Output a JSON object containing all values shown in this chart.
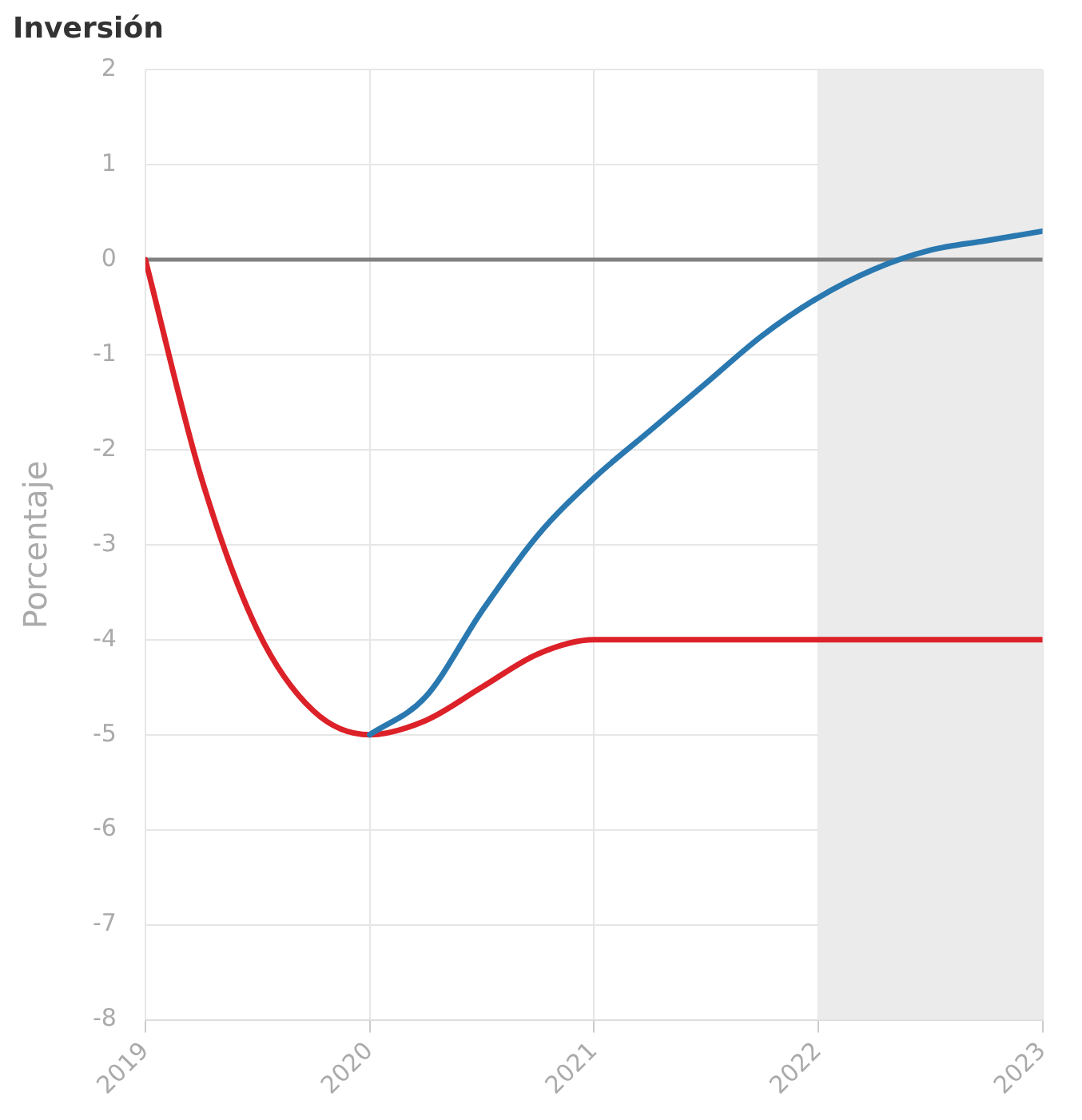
{
  "chart_data": {
    "type": "line",
    "title": "Inversión",
    "ylabel": "Porcentaje",
    "xlim": [
      2019,
      2023
    ],
    "xticks": [
      2019,
      2020,
      2021,
      2022,
      2023
    ],
    "ylim": [
      -8,
      2
    ],
    "yticks": [
      -8,
      -7,
      -6,
      -5,
      -4,
      -3,
      -2,
      -1,
      0,
      1,
      2
    ],
    "grid": true,
    "legend": false,
    "marker": "none",
    "line_style": "solid",
    "series": [
      {
        "color": "#2a78b0",
        "x": [
          2020,
          2020.25,
          2020.5,
          2020.75,
          2021,
          2021.25,
          2021.5,
          2021.75,
          2022,
          2022.25,
          2022.5,
          2022.75,
          2023
        ],
        "values": [
          -5,
          -4.6,
          -3.7,
          -2.9,
          -2.3,
          -1.8,
          -1.3,
          -0.8,
          -0.4,
          -0.1,
          0.1,
          0.2,
          0.3
        ]
      },
      {
        "color": "#dc2128",
        "x": [
          2019,
          2019.25,
          2019.5,
          2019.75,
          2020,
          2020.25,
          2020.5,
          2020.75,
          2021,
          2021.5,
          2022,
          2022.5,
          2023
        ],
        "values": [
          0,
          -2.3,
          -3.9,
          -4.75,
          -5,
          -4.85,
          -4.5,
          -4.15,
          -4,
          -4,
          -4,
          -4,
          -4
        ]
      }
    ],
    "ref_lines": [
      {
        "axis": "y",
        "value": 0,
        "color": "#808080"
      }
    ],
    "bands": [
      {
        "axis": "x",
        "from": 2022,
        "to": 2023,
        "color": "#ebebeb"
      }
    ]
  }
}
